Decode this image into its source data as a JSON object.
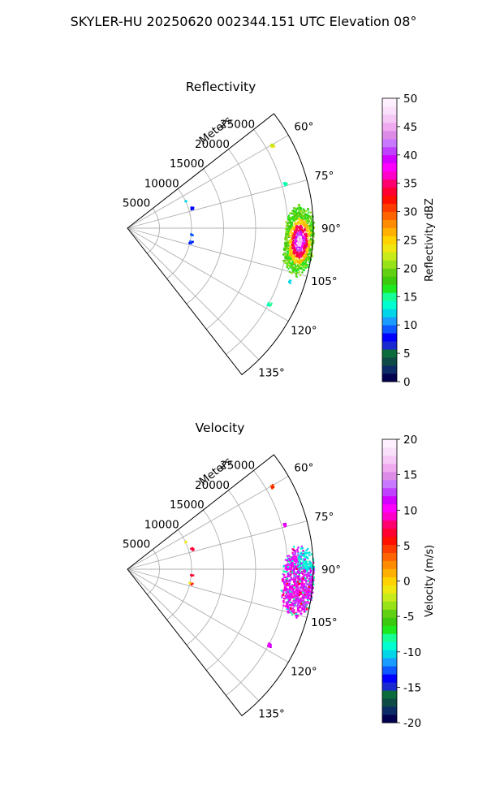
{
  "figure": {
    "title": "SKYLER-HU  20250620  002344.151 UTC Elevation 08°"
  },
  "chart_data": [
    {
      "type": "polar-sector",
      "title": "Reflectivity",
      "radial_axis_label": "Meters",
      "radial_ticks": [
        "5000",
        "10000",
        "15000",
        "20000",
        "25000"
      ],
      "azimuth_ticks": [
        "60°",
        "75°",
        "90°",
        "105°",
        "120°",
        "135°"
      ],
      "azimuth_range_deg": [
        52,
        142
      ],
      "range_m": [
        0,
        29000
      ],
      "field": "reflectivity",
      "colorbar": {
        "label": "Reflectivity dBZ",
        "range": [
          0,
          50
        ],
        "ticks": [
          "0",
          "5",
          "10",
          "15",
          "20",
          "25",
          "30",
          "35",
          "40",
          "45",
          "50"
        ],
        "colors": [
          "#03004f",
          "#0b2a66",
          "#0e4a46",
          "#0b6b3a",
          "#1a2ad0",
          "#0000ff",
          "#0d58ff",
          "#1a9cff",
          "#00d6e8",
          "#00ffd0",
          "#16ff96",
          "#1ee81e",
          "#3cc80c",
          "#62d012",
          "#98e21a",
          "#c6ea1a",
          "#f0e610",
          "#ffd200",
          "#ffb000",
          "#ff8c00",
          "#ff6400",
          "#ff3c00",
          "#ff1000",
          "#ff0030",
          "#ff0070",
          "#ff00c8",
          "#ff00ff",
          "#d200ff",
          "#c040ff",
          "#c878ff",
          "#dc8ce6",
          "#f0aaf0",
          "#f5c8f5",
          "#fae0fa",
          "#fff0ff"
        ]
      }
    },
    {
      "type": "polar-sector",
      "title": "Velocity",
      "radial_axis_label": "Meters",
      "radial_ticks": [
        "5000",
        "10000",
        "15000",
        "20000",
        "25000"
      ],
      "azimuth_ticks": [
        "60°",
        "75°",
        "90°",
        "105°",
        "120°",
        "135°"
      ],
      "azimuth_range_deg": [
        52,
        142
      ],
      "range_m": [
        0,
        29000
      ],
      "field": "velocity",
      "colorbar": {
        "label": "Velocity (m/s)",
        "range": [
          -20,
          20
        ],
        "ticks": [
          "-20",
          "-15",
          "-10",
          "-5",
          "0",
          "5",
          "10",
          "15",
          "20"
        ],
        "colors": [
          "#03004f",
          "#0b2a66",
          "#0e4a46",
          "#0b6b3a",
          "#1a2ad0",
          "#0000ff",
          "#0d58ff",
          "#1a9cff",
          "#00d6e8",
          "#00ffd0",
          "#16ff96",
          "#1ee81e",
          "#3cc80c",
          "#62d012",
          "#98e21a",
          "#c6ea1a",
          "#f0e610",
          "#ffd200",
          "#ffb000",
          "#ff8c00",
          "#ff6400",
          "#ff3c00",
          "#ff1000",
          "#ff0030",
          "#ff0070",
          "#ff00c8",
          "#ff00ff",
          "#d200ff",
          "#c040ff",
          "#c878ff",
          "#dc8ce6",
          "#f0aaf0",
          "#f5c8f5",
          "#fae0fa",
          "#fff0ff"
        ]
      }
    }
  ]
}
